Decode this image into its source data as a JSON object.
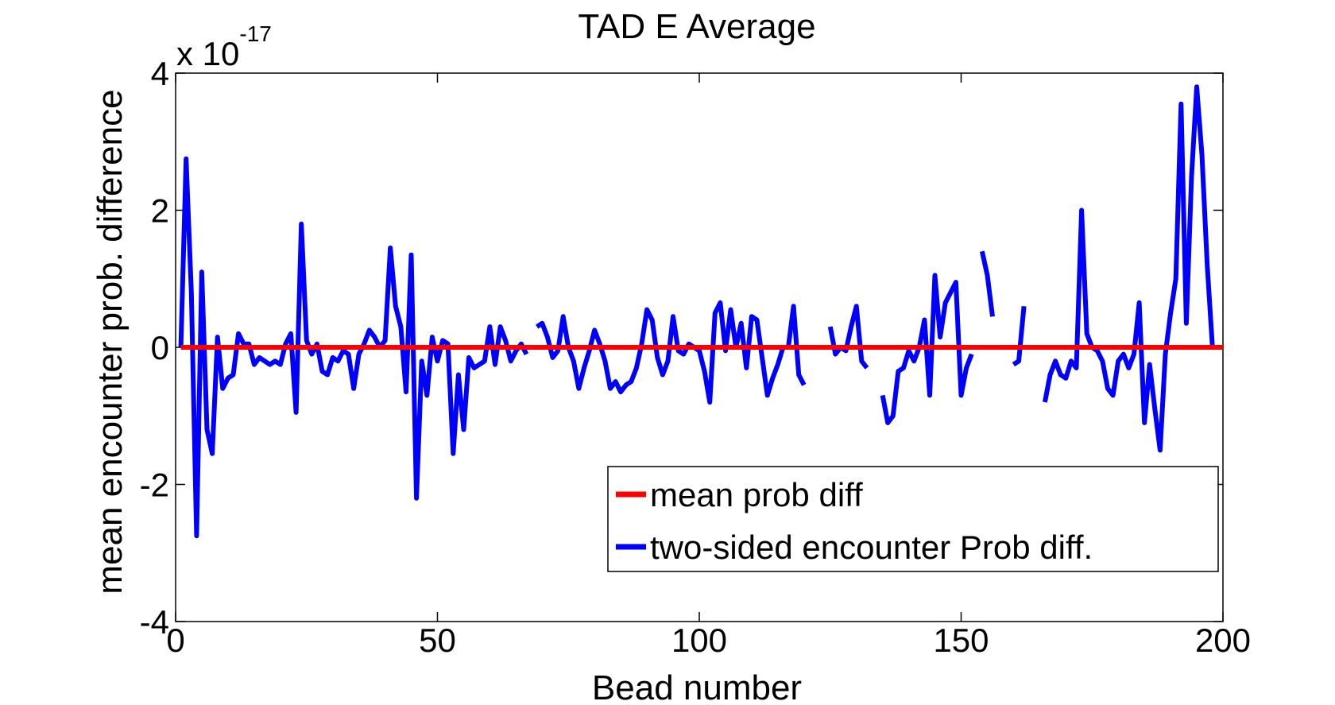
{
  "chart_data": {
    "type": "line",
    "title": "TAD E Average",
    "xlabel": "Bead number",
    "ylabel": "mean encounter prob. difference",
    "y_multiplier_base": "x 10",
    "y_multiplier_exponent": "-17",
    "xlim": [
      0,
      200
    ],
    "ylim": [
      -4,
      4
    ],
    "x_ticks": [
      "0",
      "50",
      "100",
      "150",
      "200"
    ],
    "y_ticks": [
      "-4",
      "-2",
      "0",
      "2",
      "4"
    ],
    "legend_position": "lower-right",
    "grid": false,
    "series": [
      {
        "name": "mean prob diff",
        "color": "#ff0000",
        "x": [
          1,
          200
        ],
        "y": [
          0,
          0
        ]
      },
      {
        "name": "two-sided encounter Prob diff.",
        "color": "#0000ff",
        "segments": [
          {
            "x": [
              1,
              2,
              3,
              4,
              5,
              6,
              7,
              8,
              9,
              10,
              11,
              12,
              13,
              14,
              15,
              16,
              17,
              18,
              19,
              20,
              21,
              22,
              23,
              24,
              25,
              26,
              27,
              28,
              29,
              30,
              31,
              32,
              33,
              34,
              35,
              36,
              37,
              38,
              39,
              40,
              41,
              42,
              43,
              44,
              45,
              46,
              47,
              48,
              49,
              50,
              51,
              52,
              53,
              54,
              55,
              56,
              57,
              58,
              59,
              60,
              61,
              62,
              63,
              64,
              65,
              66,
              67
            ],
            "y": [
              0,
              2.75,
              0.8,
              -2.75,
              1.1,
              -1.2,
              -1.55,
              0.15,
              -0.6,
              -0.45,
              -0.4,
              0.2,
              0.05,
              0.05,
              -0.25,
              -0.15,
              -0.2,
              -0.25,
              -0.2,
              -0.25,
              0.05,
              0.2,
              -0.95,
              1.8,
              0.1,
              -0.1,
              0.05,
              -0.35,
              -0.4,
              -0.15,
              -0.2,
              -0.05,
              -0.1,
              -0.6,
              -0.1,
              0.05,
              0.25,
              0.15,
              0.0,
              0.1,
              1.45,
              0.6,
              0.3,
              -0.65,
              1.35,
              -2.2,
              -0.2,
              -0.7,
              0.15,
              -0.2,
              0.1,
              0.05,
              -1.55,
              -0.4,
              -1.2,
              -0.15,
              -0.3,
              -0.25,
              -0.2,
              0.3,
              -0.25,
              0.3,
              0.1,
              -0.2,
              -0.05,
              0.05,
              -0.1
            ]
          },
          {
            "x": [
              69,
              70,
              71,
              72,
              73,
              74,
              75,
              76,
              77,
              78,
              79,
              80,
              81,
              82,
              83,
              84,
              85,
              86,
              87,
              88,
              89,
              90,
              91,
              92,
              93,
              94,
              95,
              96,
              97,
              98,
              99,
              100,
              101,
              102,
              103,
              104,
              105,
              106,
              107,
              108,
              109,
              110,
              111,
              112,
              113,
              114,
              115,
              116,
              117,
              118,
              119,
              120,
              121
            ],
            "y": [
              0.3,
              0.35,
              0.15,
              -0.15,
              -0.05,
              0.45,
              0.0,
              -0.2,
              -0.6,
              -0.3,
              -0.05,
              0.25,
              0.05,
              -0.2,
              -0.6,
              -0.5,
              -0.65,
              -0.55,
              -0.5,
              -0.3,
              0.05,
              0.55,
              0.4,
              -0.15,
              -0.4,
              -0.2,
              0.45,
              -0.05,
              -0.1,
              0.05,
              0.0,
              -0.05,
              -0.35,
              -0.8,
              0.5,
              0.65,
              -0.05,
              0.55,
              0.0,
              0.35,
              -0.3,
              0.45,
              0.4,
              -0.15,
              -0.7,
              -0.45,
              -0.25,
              0.0,
              0.0,
              0.6,
              -0.4,
              -0.55,
              null
            ]
          },
          {
            "x": [
              125,
              126,
              127,
              128,
              129,
              130,
              131,
              132
            ],
            "y": [
              0.3,
              -0.1,
              0.0,
              -0.05,
              0.3,
              0.6,
              -0.2,
              -0.3
            ]
          },
          {
            "x": [
              135,
              136,
              137,
              138,
              139,
              140,
              141,
              142,
              143,
              144,
              145,
              146,
              147,
              148,
              149,
              150,
              151,
              152,
              153
            ],
            "y": [
              -0.7,
              -1.1,
              -1.0,
              -0.35,
              -0.3,
              -0.05,
              -0.2,
              0.0,
              0.4,
              -0.7,
              1.05,
              0.15,
              0.65,
              0.8,
              0.95,
              -0.7,
              -0.3,
              -0.1,
              null
            ]
          },
          {
            "x": [
              154,
              155,
              156
            ],
            "y": [
              1.4,
              1.05,
              0.45
            ]
          },
          {
            "x": [
              160,
              161,
              162
            ],
            "y": [
              -0.25,
              -0.2,
              0.6
            ]
          },
          {
            "x": [
              166,
              167,
              168,
              169,
              170,
              171,
              172,
              173,
              174,
              175,
              176,
              177,
              178,
              179,
              180,
              181,
              182,
              183,
              184,
              185,
              186,
              187,
              188,
              189,
              190,
              191,
              192,
              193,
              194,
              195,
              196,
              197,
              198,
              199
            ],
            "y": [
              -0.8,
              -0.4,
              -0.2,
              -0.4,
              -0.45,
              -0.2,
              -0.3,
              2.0,
              0.2,
              0.0,
              -0.05,
              -0.2,
              -0.6,
              -0.7,
              -0.2,
              -0.1,
              -0.3,
              -0.1,
              0.65,
              -1.1,
              -0.25,
              -0.9,
              -1.5,
              -0.1,
              0.5,
              1.0,
              3.55,
              0.35,
              2.5,
              3.8,
              2.8,
              1.2,
              0.0,
              0.0
            ]
          }
        ]
      }
    ]
  }
}
